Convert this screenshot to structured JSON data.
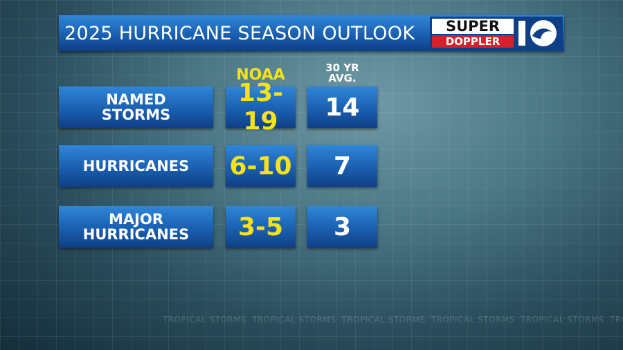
{
  "header": {
    "title": "2025 HURRICANE SEASON OUTLOOK",
    "logo": {
      "line1": "SUPER",
      "line2": "DOPPLER"
    }
  },
  "table": {
    "columns": [
      "NOAA",
      "30 YR AVG."
    ],
    "rows": [
      [
        "NAMED STORMS",
        "13-19",
        14
      ],
      [
        "HURRICANES",
        "6-10",
        7
      ],
      [
        "MAJOR HURRICANES",
        "3-5",
        3
      ]
    ]
  },
  "background_text": "TROPICAL STORMS"
}
